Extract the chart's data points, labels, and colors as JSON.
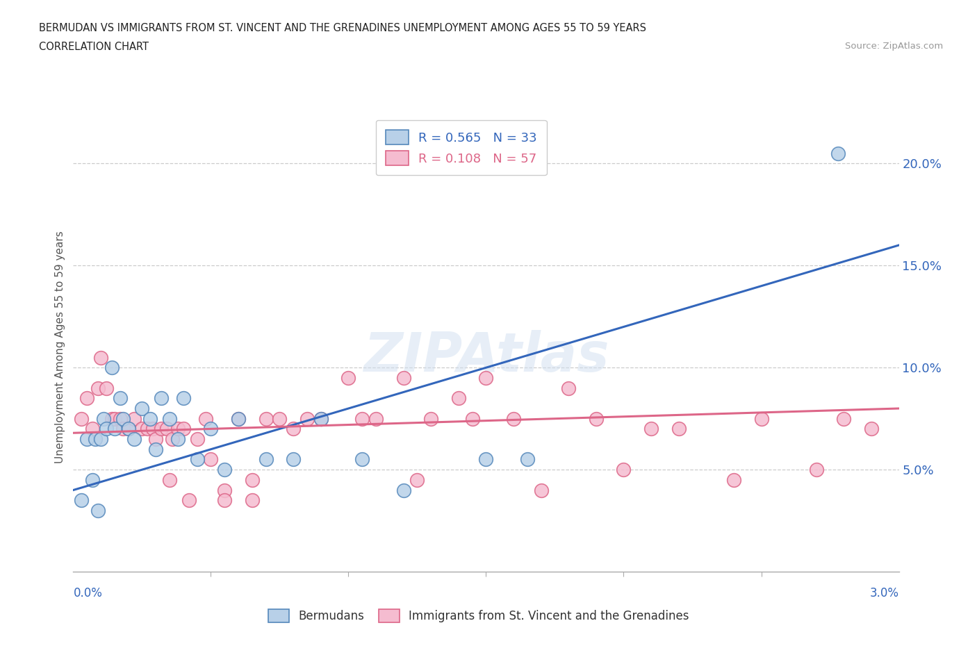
{
  "title_line1": "BERMUDAN VS IMMIGRANTS FROM ST. VINCENT AND THE GRENADINES UNEMPLOYMENT AMONG AGES 55 TO 59 YEARS",
  "title_line2": "CORRELATION CHART",
  "source_text": "Source: ZipAtlas.com",
  "ylabel_label": "Unemployment Among Ages 55 to 59 years",
  "legend_entry1": "R = 0.565   N = 33",
  "legend_entry2": "R = 0.108   N = 57",
  "series1_color": "#b8d0e8",
  "series1_edge": "#5588bb",
  "series2_color": "#f5bcd0",
  "series2_edge": "#dd6688",
  "trendline1_color": "#3366bb",
  "trendline2_color": "#dd6688",
  "watermark": "ZIPAtlas",
  "xlim": [
    0.0,
    3.0
  ],
  "ylim": [
    0.0,
    22.0
  ],
  "trendline1_x0": 0.0,
  "trendline1_y0": 4.0,
  "trendline1_x1": 3.0,
  "trendline1_y1": 16.0,
  "trendline2_x0": 0.0,
  "trendline2_y0": 6.8,
  "trendline2_x1": 3.0,
  "trendline2_y1": 8.0,
  "series1_x": [
    0.03,
    0.05,
    0.07,
    0.08,
    0.09,
    0.1,
    0.11,
    0.12,
    0.14,
    0.15,
    0.17,
    0.18,
    0.2,
    0.22,
    0.25,
    0.28,
    0.3,
    0.32,
    0.35,
    0.38,
    0.4,
    0.45,
    0.5,
    0.55,
    0.6,
    0.7,
    0.8,
    0.9,
    1.05,
    1.2,
    1.5,
    1.65,
    2.78
  ],
  "series1_y": [
    3.5,
    6.5,
    4.5,
    6.5,
    3.0,
    6.5,
    7.5,
    7.0,
    10.0,
    7.0,
    8.5,
    7.5,
    7.0,
    6.5,
    8.0,
    7.5,
    6.0,
    8.5,
    7.5,
    6.5,
    8.5,
    5.5,
    7.0,
    5.0,
    7.5,
    5.5,
    5.5,
    7.5,
    5.5,
    4.0,
    5.5,
    5.5,
    20.5
  ],
  "series2_x": [
    0.03,
    0.05,
    0.07,
    0.09,
    0.1,
    0.12,
    0.14,
    0.15,
    0.17,
    0.18,
    0.2,
    0.22,
    0.25,
    0.27,
    0.29,
    0.3,
    0.32,
    0.34,
    0.36,
    0.38,
    0.4,
    0.42,
    0.45,
    0.48,
    0.5,
    0.55,
    0.6,
    0.65,
    0.7,
    0.75,
    0.8,
    0.9,
    1.0,
    1.1,
    1.2,
    1.3,
    1.4,
    1.5,
    1.6,
    1.7,
    1.8,
    1.9,
    2.0,
    2.1,
    2.2,
    2.4,
    2.5,
    2.7,
    2.8,
    2.9,
    0.35,
    0.55,
    0.65,
    0.85,
    1.05,
    1.25,
    1.45
  ],
  "series2_y": [
    7.5,
    8.5,
    7.0,
    9.0,
    10.5,
    9.0,
    7.5,
    7.5,
    7.5,
    7.0,
    7.0,
    7.5,
    7.0,
    7.0,
    7.0,
    6.5,
    7.0,
    7.0,
    6.5,
    7.0,
    7.0,
    3.5,
    6.5,
    7.5,
    5.5,
    4.0,
    7.5,
    3.5,
    7.5,
    7.5,
    7.0,
    7.5,
    9.5,
    7.5,
    9.5,
    7.5,
    8.5,
    9.5,
    7.5,
    4.0,
    9.0,
    7.5,
    5.0,
    7.0,
    7.0,
    4.5,
    7.5,
    5.0,
    7.5,
    7.0,
    4.5,
    3.5,
    4.5,
    7.5,
    7.5,
    4.5,
    7.5
  ]
}
